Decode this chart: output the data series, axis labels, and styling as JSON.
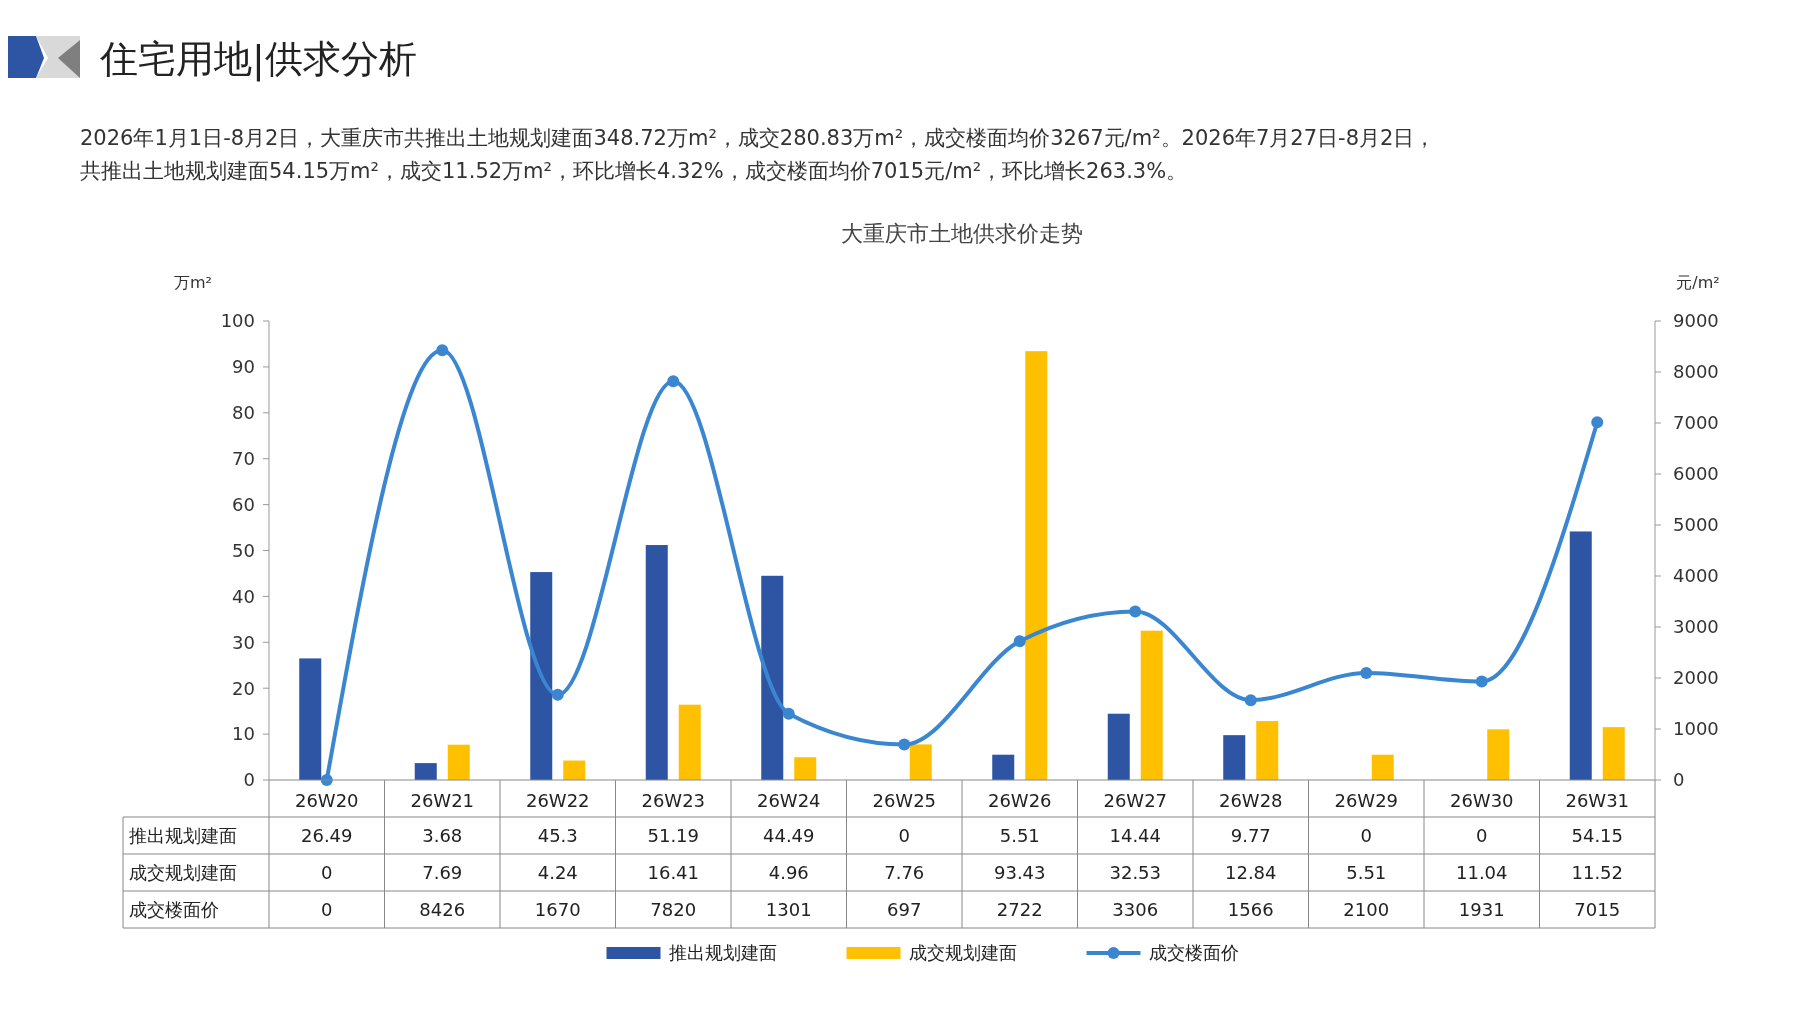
{
  "chart_data": {
    "type": "bar",
    "title": "大重庆市土地供求价走势",
    "annotations": [
      "住宅用地|供求分析",
      "2026年1月1日-8月2日，大重庆市共推出土地规划建面348.72万m²，成交280.83万m²，成交楼面均价3267元/m²。2026年7月27日-8月2日，",
      "共推出土地规划建面54.15万m²，成交11.52万m²，环比增长4.32%，成交楼面均价7015元/m²，环比增长263.3%。"
    ],
    "ylabel": "万m²",
    "y2label": "元/m²",
    "categories": [
      "26W20",
      "26W21",
      "26W22",
      "26W23",
      "26W24",
      "26W25",
      "26W26",
      "26W27",
      "26W28",
      "26W29",
      "26W30",
      "26W31"
    ],
    "series": [
      {
        "name": "推出规划建面",
        "color": "#2e54a4",
        "values": [
          26.49,
          3.68,
          45.3,
          51.19,
          44.49,
          0,
          5.51,
          14.44,
          9.77,
          0,
          0,
          54.15
        ]
      },
      {
        "name": "成交规划建面",
        "color": "#ffc000",
        "values": [
          0,
          7.69,
          4.24,
          16.41,
          4.96,
          7.76,
          93.43,
          32.53,
          12.84,
          5.51,
          11.04,
          11.52
        ]
      },
      {
        "name": "成交楼面价",
        "type": "line",
        "axis": "y2",
        "color": "#3b86d0",
        "marker": "circle",
        "values": [
          0,
          8426,
          1670,
          7820,
          1301,
          697,
          2722,
          3306,
          1566,
          2100,
          1931,
          7015
        ]
      }
    ],
    "ylim": [
      0,
      100
    ],
    "yticks": [
      0,
      10,
      20,
      30,
      40,
      50,
      60,
      70,
      80,
      90,
      100
    ],
    "y2lim": [
      0,
      9000
    ],
    "y2ticks": [
      0,
      1000,
      2000,
      3000,
      4000,
      5000,
      6000,
      7000,
      8000,
      9000
    ],
    "data_labels": true,
    "legend": "bottom"
  }
}
